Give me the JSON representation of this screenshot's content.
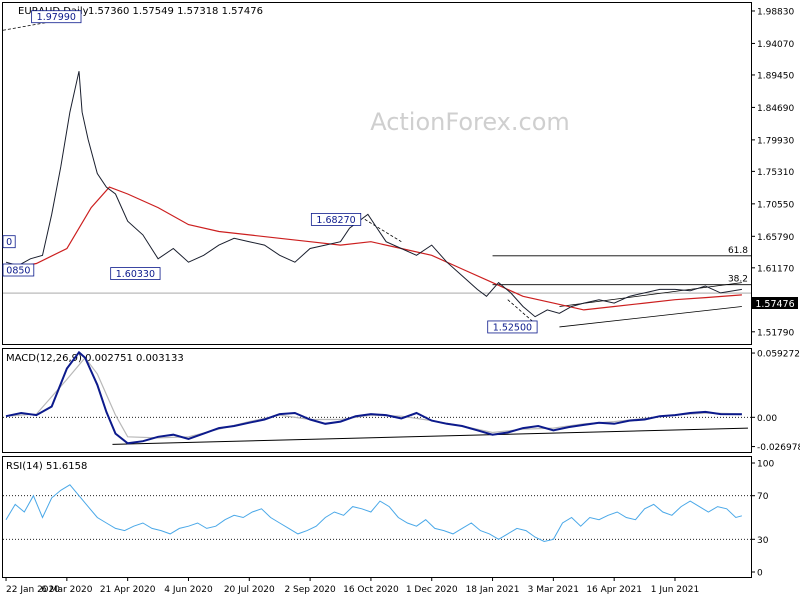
{
  "chart_data": {
    "type": "line",
    "instrument_title": "EURAUD,Daily",
    "ohlc_values": "1.57360 1.57549 1.57318 1.57476",
    "watermark": "ActionForex.com",
    "current_price_label": "1.57476",
    "price_panel": {
      "ylim": [
        1.5,
        2.0
      ],
      "y_ticks": [
        1.9883,
        1.9407,
        1.8945,
        1.8469,
        1.7993,
        1.7531,
        1.7055,
        1.6579,
        1.6117,
        1.5641,
        1.5179
      ],
      "y_tick_labels": [
        "1.98830",
        "1.94070",
        "1.89450",
        "1.84690",
        "1.79930",
        "1.75310",
        "1.70550",
        "1.65790",
        "1.61170",
        "1.56410",
        "1.51790"
      ],
      "annotations": [
        {
          "label": "1.97990",
          "x": 2.4,
          "y": 1.9799
        },
        {
          "label": "1.60330",
          "x": 5.0,
          "y": 1.6033
        },
        {
          "label": "1.68270",
          "x": 11.6,
          "y": 1.6827
        },
        {
          "label": "1.52500",
          "x": 17.4,
          "y": 1.525
        },
        {
          "label": "0",
          "x": 0.0,
          "y": 1.65
        },
        {
          "label": "0850",
          "x": 0.0,
          "y": 1.6085
        }
      ],
      "fib_levels": [
        {
          "label": "61.8",
          "y": 1.6293
        },
        {
          "label": "38.2",
          "y": 1.587
        }
      ],
      "price_series": {
        "name": "Close",
        "x": [
          0,
          0.4,
          0.8,
          1.2,
          1.5,
          1.8,
          2.1,
          2.4,
          2.5,
          2.7,
          3.0,
          3.3,
          3.6,
          4.0,
          4.5,
          5.0,
          5.5,
          6.0,
          6.5,
          7.0,
          7.5,
          8.0,
          8.5,
          9.0,
          9.5,
          10.0,
          10.5,
          11.0,
          11.3,
          11.6,
          11.9,
          12.2,
          12.5,
          13.0,
          13.5,
          14.0,
          14.5,
          15.0,
          15.5,
          15.8,
          16.2,
          16.6,
          17.0,
          17.4,
          17.8,
          18.2,
          18.6,
          19.0,
          19.5,
          20.0,
          20.5,
          21.0,
          21.5,
          22.0,
          22.5,
          23.0,
          23.5,
          24.2
        ],
        "values": [
          1.62,
          1.615,
          1.625,
          1.63,
          1.69,
          1.76,
          1.84,
          1.9,
          1.84,
          1.8,
          1.75,
          1.73,
          1.72,
          1.68,
          1.66,
          1.625,
          1.64,
          1.62,
          1.63,
          1.645,
          1.655,
          1.65,
          1.645,
          1.63,
          1.62,
          1.64,
          1.645,
          1.65,
          1.67,
          1.68,
          1.69,
          1.67,
          1.65,
          1.64,
          1.63,
          1.645,
          1.62,
          1.6,
          1.58,
          1.57,
          1.59,
          1.575,
          1.555,
          1.54,
          1.55,
          1.545,
          1.555,
          1.56,
          1.565,
          1.56,
          1.57,
          1.575,
          1.58,
          1.58,
          1.578,
          1.585,
          1.575,
          1.58
        ]
      },
      "ma_series": {
        "x": [
          0,
          1,
          2,
          2.8,
          3.4,
          4,
          5,
          6,
          7,
          8,
          9,
          10,
          11,
          12,
          13,
          14,
          15,
          16,
          17,
          18,
          19,
          20,
          21,
          22,
          23,
          24.2
        ],
        "values": [
          1.61,
          1.618,
          1.64,
          1.7,
          1.73,
          1.72,
          1.7,
          1.675,
          1.665,
          1.66,
          1.655,
          1.65,
          1.645,
          1.65,
          1.64,
          1.63,
          1.61,
          1.59,
          1.57,
          1.56,
          1.55,
          1.555,
          1.56,
          1.565,
          1.568,
          1.572
        ]
      }
    },
    "macd_panel": {
      "indicator_label": "MACD(12,26,9) 0.002751 0.003133",
      "ylim": [
        -0.032,
        0.063
      ],
      "y_ticks": [
        0.059272,
        0.0,
        -0.026978
      ],
      "y_tick_labels": [
        "0.059272",
        "0.00",
        "-0.026978"
      ],
      "macd_series": {
        "x": [
          0,
          0.5,
          1,
          1.5,
          2,
          2.4,
          2.6,
          3,
          3.3,
          3.6,
          4,
          4.5,
          5,
          5.5,
          6,
          6.5,
          7,
          7.5,
          8,
          8.5,
          9,
          9.5,
          10,
          10.5,
          11,
          11.5,
          12,
          12.5,
          13,
          13.5,
          14,
          14.5,
          15,
          15.5,
          16,
          16.5,
          17,
          17.5,
          18,
          18.5,
          19,
          19.5,
          20,
          20.5,
          21,
          21.5,
          22,
          22.5,
          23,
          23.5,
          24.2
        ],
        "values": [
          0.001,
          0.004,
          0.002,
          0.01,
          0.045,
          0.06,
          0.055,
          0.03,
          0.005,
          -0.015,
          -0.024,
          -0.022,
          -0.018,
          -0.016,
          -0.02,
          -0.015,
          -0.01,
          -0.008,
          -0.005,
          -0.002,
          0.003,
          0.004,
          -0.002,
          -0.006,
          -0.004,
          0.001,
          0.003,
          0.002,
          -0.001,
          0.004,
          -0.003,
          -0.006,
          -0.008,
          -0.012,
          -0.016,
          -0.014,
          -0.01,
          -0.008,
          -0.012,
          -0.009,
          -0.007,
          -0.005,
          -0.006,
          -0.003,
          -0.002,
          0.001,
          0.002,
          0.004,
          0.005,
          0.003,
          0.0028
        ]
      },
      "signal_series": {
        "x": [
          0,
          1,
          2,
          2.6,
          3,
          3.6,
          4,
          5,
          6,
          7,
          8,
          9,
          10,
          11,
          12,
          13,
          14,
          15,
          16,
          17,
          18,
          19,
          20,
          21,
          22,
          23,
          24.2
        ],
        "values": [
          0.001,
          0.003,
          0.035,
          0.055,
          0.04,
          0.002,
          -0.018,
          -0.019,
          -0.018,
          -0.011,
          -0.004,
          0.002,
          -0.002,
          -0.002,
          0.002,
          0.001,
          -0.003,
          -0.008,
          -0.014,
          -0.011,
          -0.01,
          -0.006,
          -0.004,
          -0.001,
          0.002,
          0.004,
          0.0031
        ]
      }
    },
    "rsi_panel": {
      "indicator_label": "RSI(14) 51.6158",
      "ylim": [
        0,
        100
      ],
      "y_ticks": [
        100,
        70,
        30,
        0
      ],
      "y_tick_labels": [
        "100",
        "70",
        "30",
        "0"
      ],
      "rsi_series": {
        "x": [
          0,
          0.3,
          0.6,
          0.9,
          1.2,
          1.5,
          1.8,
          2.1,
          2.4,
          2.7,
          3.0,
          3.3,
          3.6,
          3.9,
          4.2,
          4.5,
          4.8,
          5.1,
          5.4,
          5.7,
          6.0,
          6.3,
          6.6,
          6.9,
          7.2,
          7.5,
          7.8,
          8.1,
          8.4,
          8.7,
          9.0,
          9.3,
          9.6,
          9.9,
          10.2,
          10.5,
          10.8,
          11.1,
          11.4,
          11.7,
          12.0,
          12.3,
          12.6,
          12.9,
          13.2,
          13.5,
          13.8,
          14.1,
          14.4,
          14.7,
          15.0,
          15.3,
          15.6,
          15.9,
          16.2,
          16.5,
          16.8,
          17.1,
          17.4,
          17.7,
          18.0,
          18.3,
          18.6,
          18.9,
          19.2,
          19.5,
          19.8,
          20.1,
          20.4,
          20.7,
          21.0,
          21.3,
          21.6,
          21.9,
          22.2,
          22.5,
          22.8,
          23.1,
          23.4,
          23.7,
          24.0,
          24.2
        ],
        "values": [
          48,
          62,
          55,
          70,
          50,
          68,
          75,
          80,
          70,
          60,
          50,
          45,
          40,
          38,
          42,
          45,
          40,
          38,
          35,
          40,
          42,
          45,
          40,
          42,
          48,
          52,
          50,
          55,
          58,
          50,
          45,
          40,
          35,
          38,
          42,
          50,
          55,
          52,
          60,
          58,
          55,
          65,
          60,
          50,
          45,
          42,
          48,
          40,
          38,
          35,
          40,
          45,
          38,
          35,
          30,
          35,
          40,
          38,
          32,
          28,
          30,
          45,
          50,
          42,
          50,
          48,
          52,
          55,
          50,
          48,
          58,
          62,
          55,
          52,
          60,
          65,
          60,
          55,
          60,
          58,
          50,
          51.6
        ]
      }
    },
    "x_axis": {
      "tick_positions": [
        0,
        2,
        4,
        6,
        8,
        10,
        12,
        14,
        16,
        18,
        20,
        22
      ],
      "tick_labels": [
        "22 Jan 2020",
        "6 Mar 2020",
        "21 Apr 2020",
        "4 Jun 2020",
        "20 Jul 2020",
        "2 Sep 2020",
        "16 Oct 2020",
        "1 Dec 2020",
        "18 Jan 2021",
        "3 Mar 2021",
        "16 Apr 2021",
        "1 Jun 2021"
      ],
      "xlim": [
        -0.1,
        24.5
      ]
    },
    "colors": {
      "price_line": "#1a1f2e",
      "ma_line": "#cc1f1f",
      "macd_line": "#0c1a8c",
      "signal_line": "#b8b8b8",
      "rsi_line": "#4aa8e8",
      "trend_line": "#000000",
      "grid_dash": "#000000",
      "annotation_box": "#0c1a8c"
    }
  }
}
